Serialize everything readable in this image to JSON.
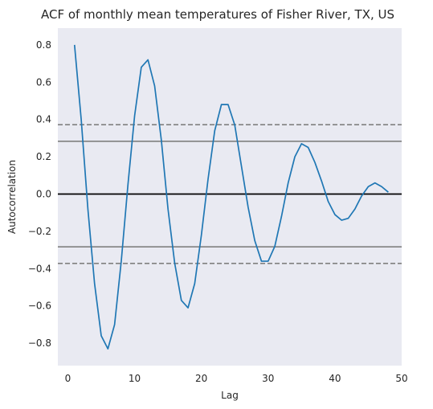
{
  "chart_data": {
    "type": "line",
    "title": "ACF of monthly mean temperatures of Fisher River, TX, US",
    "xlabel": "Lag",
    "ylabel": "Autocorrelation",
    "xlim": [
      -1.5,
      50
    ],
    "ylim": [
      -0.92,
      0.89
    ],
    "xticks": [
      0,
      10,
      20,
      30,
      40,
      50
    ],
    "yticks": [
      -0.8,
      -0.6,
      -0.4,
      -0.2,
      0.0,
      0.2,
      0.4,
      0.6,
      0.8
    ],
    "xtick_labels": [
      "0",
      "10",
      "20",
      "30",
      "40",
      "50"
    ],
    "ytick_labels": [
      "−0.8",
      "−0.6",
      "−0.4",
      "−0.2",
      "0.0",
      "0.2",
      "0.4",
      "0.6",
      "0.8"
    ],
    "grid": false,
    "background": "#e9eaf2",
    "line_color": "#1f77b4",
    "series": [
      {
        "x": [
          1,
          2,
          3,
          4,
          5,
          6,
          7,
          8,
          9,
          10,
          11,
          12,
          13,
          14,
          15,
          16,
          17,
          18,
          19,
          20,
          21,
          22,
          23,
          24,
          25,
          26,
          27,
          28,
          29,
          30,
          31,
          32,
          33,
          34,
          35,
          36,
          37,
          38,
          39,
          40,
          41,
          42,
          43,
          44,
          45,
          46,
          47,
          48
        ],
        "values": [
          0.8,
          0.4,
          -0.08,
          -0.48,
          -0.76,
          -0.83,
          -0.7,
          -0.36,
          0.05,
          0.42,
          0.68,
          0.72,
          0.58,
          0.29,
          -0.08,
          -0.37,
          -0.57,
          -0.61,
          -0.48,
          -0.22,
          0.08,
          0.34,
          0.48,
          0.48,
          0.37,
          0.15,
          -0.07,
          -0.25,
          -0.36,
          -0.36,
          -0.28,
          -0.12,
          0.06,
          0.2,
          0.27,
          0.25,
          0.17,
          0.07,
          -0.04,
          -0.11,
          -0.14,
          -0.13,
          -0.08,
          -0.01,
          0.04,
          0.06,
          0.04,
          0.01
        ]
      }
    ],
    "reference_lines": [
      {
        "y": 0.0,
        "style": "solid",
        "color": "#000000"
      },
      {
        "y": 0.283,
        "style": "solid",
        "color": "#808080"
      },
      {
        "y": -0.283,
        "style": "solid",
        "color": "#808080"
      },
      {
        "y": 0.372,
        "style": "dashed",
        "color": "#808080"
      },
      {
        "y": -0.372,
        "style": "dashed",
        "color": "#808080"
      }
    ]
  }
}
